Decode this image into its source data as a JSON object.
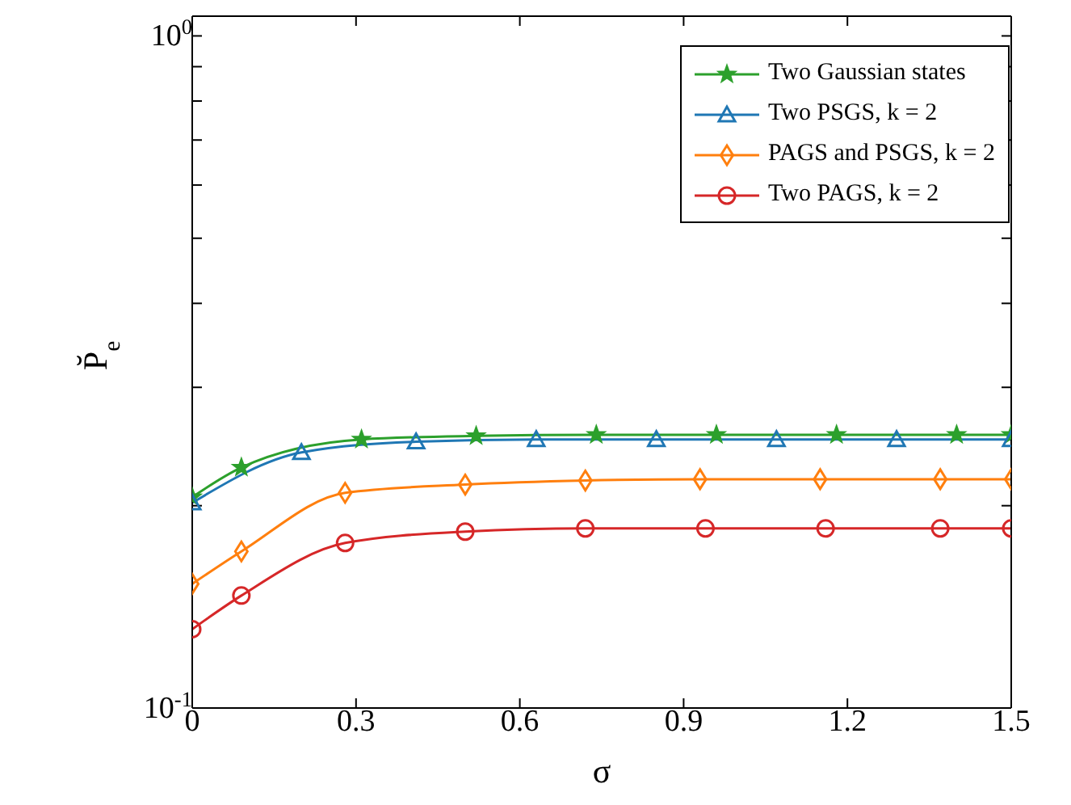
{
  "chart_data": {
    "type": "line",
    "xlabel": "σ",
    "ylabel": "P̆$_{e}$",
    "log": "y",
    "grid": false,
    "legend": "top right",
    "line_style": "solid",
    "xlim": [
      0,
      1.5
    ],
    "xticks": [
      0,
      0.3,
      0.6,
      0.9,
      1.2,
      1.5
    ],
    "ylim": [
      0.1,
      1.07
    ],
    "yticks": [
      {
        "value": 0.1,
        "label": "10$^{-1}$"
      },
      {
        "value": 0.2,
        "label": null
      },
      {
        "value": 0.3,
        "label": null
      },
      {
        "value": 0.4,
        "label": null
      },
      {
        "value": 0.5,
        "label": null
      },
      {
        "value": 0.6,
        "label": null
      },
      {
        "value": 0.7,
        "label": null
      },
      {
        "value": 0.8,
        "label": null
      },
      {
        "value": 0.9,
        "label": null
      },
      {
        "value": 1,
        "label": "10$^{0}$"
      }
    ],
    "series": [
      {
        "name": "Two Gaussian states",
        "color": "#2ca02c",
        "marker": "star",
        "x": [
          0,
          0.09,
          0.31,
          0.52,
          0.74,
          0.96,
          1.18,
          1.4,
          1.5
        ],
        "values": [
          0.206,
          0.228,
          0.251,
          0.254,
          0.255,
          0.255,
          0.255,
          0.255,
          0.255
        ]
      },
      {
        "name": "Two PSGS, k = 2",
        "color": "#1f77b4",
        "marker": "triangle",
        "x": [
          0,
          0.2,
          0.41,
          0.63,
          0.85,
          1.07,
          1.29,
          1.5
        ],
        "values": [
          0.202,
          0.24,
          0.249,
          0.251,
          0.251,
          0.251,
          0.251,
          0.251
        ]
      },
      {
        "name": "PAGS and PSGS, k = 2",
        "color": "#ff7f0e",
        "marker": "diamond",
        "x": [
          0,
          0.09,
          0.28,
          0.5,
          0.72,
          0.93,
          1.15,
          1.37,
          1.5
        ],
        "values": [
          0.153,
          0.171,
          0.209,
          0.215,
          0.218,
          0.219,
          0.219,
          0.219,
          0.219
        ]
      },
      {
        "name": "Two PAGS, k = 2",
        "color": "#d62728",
        "marker": "circle",
        "x": [
          0,
          0.09,
          0.28,
          0.5,
          0.72,
          0.94,
          1.16,
          1.37,
          1.5
        ],
        "values": [
          0.131,
          0.147,
          0.176,
          0.183,
          0.185,
          0.185,
          0.185,
          0.185,
          0.185
        ]
      }
    ]
  }
}
